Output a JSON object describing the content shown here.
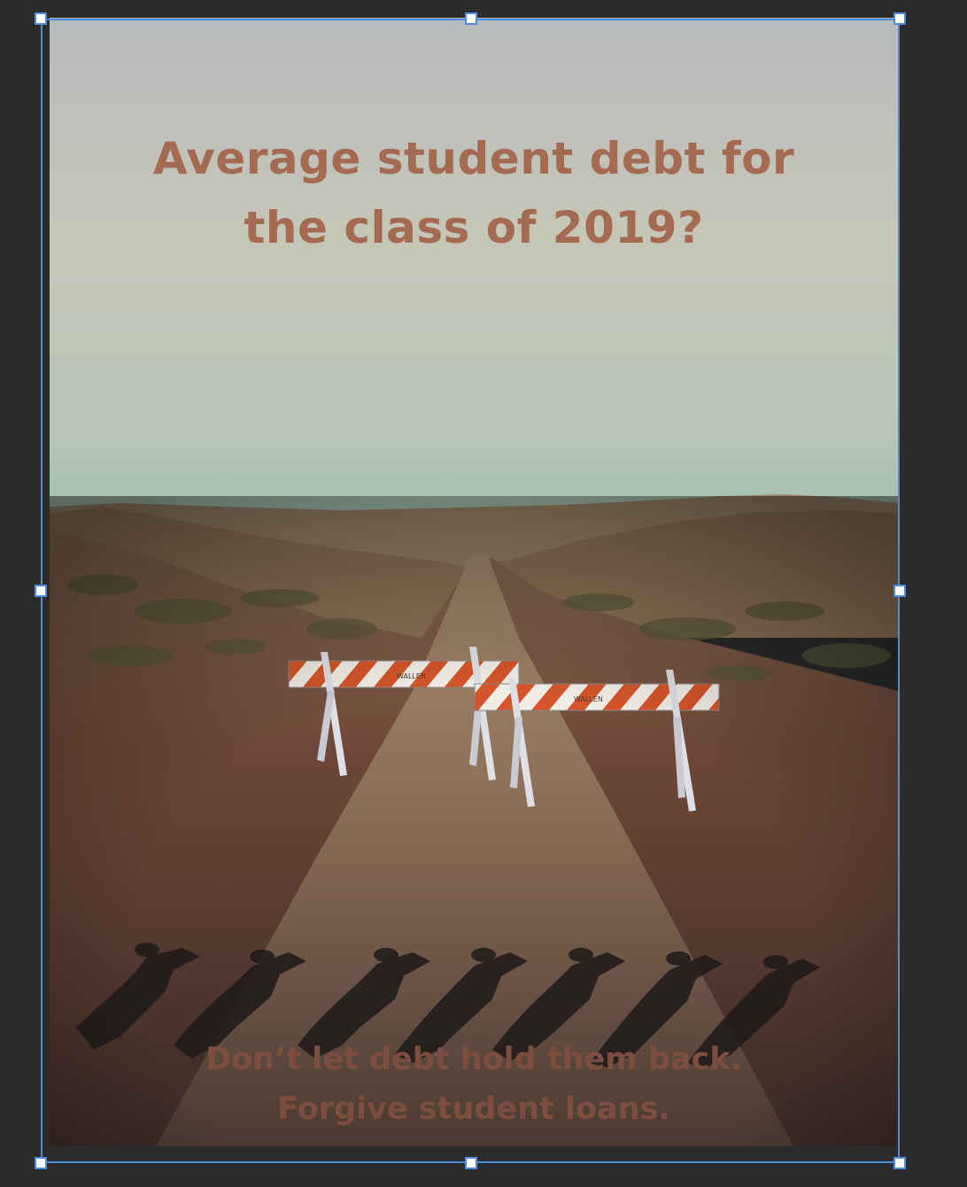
{
  "poster": {
    "headline_line1": "Average student debt for",
    "headline_line2": "the class of 2019?",
    "tagline_line1": "Don’t let debt hold them back.",
    "tagline_line2": "Forgive student loans.",
    "barricade_text": "WALLEN"
  },
  "colors": {
    "workspace": "#2b2b2b",
    "selection": "#4b8ce0",
    "headline": "#a46a52",
    "tagline": "#7d4e40",
    "sky_top": "#b9bbbc",
    "sky_bottom": "#a9c3b4",
    "road": "#8b6e58",
    "barricade_orange": "#d4552a"
  }
}
